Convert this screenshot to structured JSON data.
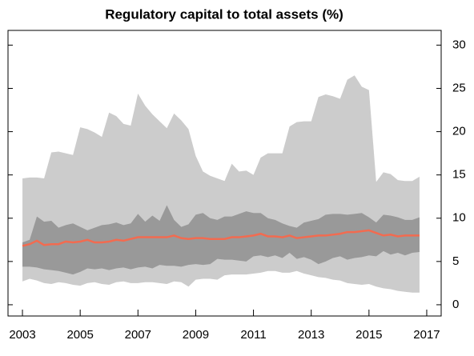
{
  "chart_data": {
    "type": "fan",
    "title": "Regulatory capital to total assets (%)",
    "x": [
      2003,
      2003.25,
      2003.5,
      2003.75,
      2004,
      2004.25,
      2004.5,
      2004.75,
      2005,
      2005.25,
      2005.5,
      2005.75,
      2006,
      2006.25,
      2006.5,
      2006.75,
      2007,
      2007.25,
      2007.5,
      2007.75,
      2008,
      2008.25,
      2008.5,
      2008.75,
      2009,
      2009.25,
      2009.5,
      2009.75,
      2010,
      2010.25,
      2010.5,
      2010.75,
      2011,
      2011.25,
      2011.5,
      2011.75,
      2012,
      2012.25,
      2012.5,
      2012.75,
      2013,
      2013.25,
      2013.5,
      2013.75,
      2014,
      2014.25,
      2014.5,
      2014.75,
      2015,
      2015.25,
      2015.5,
      2015.75,
      2016,
      2016.25,
      2016.5,
      2016.75
    ],
    "bands": [
      {
        "color": "#cccccc",
        "upper": [
          14.6,
          14.7,
          14.7,
          14.6,
          17.6,
          17.7,
          17.5,
          17.3,
          20.5,
          20.3,
          19.9,
          19.4,
          22.2,
          21.8,
          20.9,
          20.7,
          24.4,
          23.0,
          22.0,
          21.2,
          20.4,
          22.1,
          21.3,
          20.3,
          17.2,
          15.4,
          14.9,
          14.6,
          14.3,
          16.3,
          15.4,
          15.5,
          15.0,
          17.0,
          17.5,
          17.5,
          17.5,
          20.6,
          21.1,
          21.2,
          21.2,
          24.0,
          24.3,
          24.1,
          23.8,
          26.0,
          26.5,
          25.2,
          24.8,
          14.2,
          15.3,
          15.1,
          14.4,
          14.3,
          14.3,
          14.8
        ],
        "lower": [
          2.7,
          3.0,
          2.8,
          2.5,
          2.4,
          2.6,
          2.5,
          2.3,
          2.2,
          2.5,
          2.6,
          2.4,
          2.3,
          2.6,
          2.7,
          2.5,
          2.5,
          2.6,
          2.6,
          2.5,
          2.4,
          2.7,
          2.6,
          2.1,
          2.9,
          3.0,
          3.0,
          2.9,
          3.4,
          3.5,
          3.5,
          3.5,
          3.6,
          3.7,
          3.9,
          3.9,
          3.7,
          3.7,
          3.9,
          3.6,
          3.4,
          3.2,
          3.1,
          2.9,
          2.8,
          2.5,
          2.4,
          2.3,
          2.4,
          2.1,
          1.9,
          1.8,
          1.6,
          1.5,
          1.4,
          1.4
        ]
      },
      {
        "color": "#999999",
        "upper": [
          7.2,
          7.5,
          10.2,
          9.6,
          9.7,
          8.9,
          9.2,
          9.4,
          9.0,
          8.6,
          8.9,
          9.2,
          9.3,
          9.5,
          9.2,
          9.4,
          10.5,
          9.6,
          10.3,
          9.7,
          11.5,
          9.8,
          9.0,
          9.3,
          10.4,
          10.6,
          10.0,
          9.8,
          10.2,
          10.2,
          10.5,
          10.8,
          10.6,
          10.6,
          10.0,
          9.8,
          9.4,
          9.1,
          8.9,
          9.5,
          9.7,
          9.9,
          10.4,
          10.5,
          10.5,
          10.4,
          10.5,
          10.6,
          10.1,
          9.5,
          10.4,
          10.3,
          10.1,
          9.8,
          9.8,
          10.1
        ],
        "lower": [
          4.4,
          4.4,
          4.3,
          4.1,
          4.0,
          3.9,
          3.7,
          3.5,
          3.8,
          4.2,
          4.1,
          4.2,
          4.0,
          4.2,
          4.3,
          4.1,
          4.3,
          4.4,
          4.2,
          4.6,
          4.5,
          4.5,
          4.4,
          4.6,
          4.7,
          4.6,
          4.7,
          5.3,
          5.2,
          5.2,
          5.1,
          5.0,
          5.6,
          5.7,
          5.5,
          5.7,
          5.4,
          6.0,
          5.3,
          5.5,
          5.2,
          4.7,
          5.0,
          5.4,
          5.6,
          5.2,
          5.4,
          5.5,
          5.7,
          5.6,
          6.2,
          5.8,
          6.0,
          5.7,
          6.0,
          6.1
        ]
      }
    ],
    "series": [
      {
        "color": "#f26b50",
        "values": [
          6.8,
          7.0,
          7.4,
          6.9,
          7.0,
          7.0,
          7.3,
          7.2,
          7.3,
          7.5,
          7.2,
          7.2,
          7.3,
          7.5,
          7.4,
          7.6,
          7.8,
          7.8,
          7.8,
          7.8,
          7.8,
          8.0,
          7.7,
          7.6,
          7.7,
          7.7,
          7.6,
          7.6,
          7.6,
          7.8,
          7.8,
          7.9,
          8.0,
          8.2,
          7.9,
          7.9,
          7.8,
          8.0,
          7.7,
          7.8,
          7.9,
          8.0,
          8.0,
          8.1,
          8.2,
          8.4,
          8.4,
          8.5,
          8.6,
          8.3,
          8.0,
          8.1,
          7.9,
          8.0,
          8.0,
          8.0
        ]
      }
    ],
    "xlim": [
      2002.5,
      2017.5
    ],
    "xticks": [
      2003,
      2005,
      2007,
      2009,
      2011,
      2013,
      2015,
      2017
    ],
    "ylim": [
      -1.3,
      31.7
    ],
    "yticks": [
      0,
      5,
      10,
      15,
      20,
      25,
      30
    ]
  }
}
